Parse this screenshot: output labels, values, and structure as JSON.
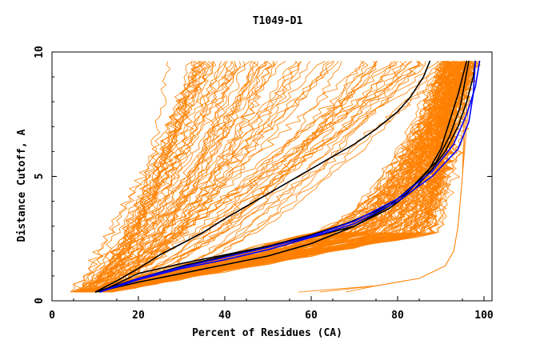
{
  "chart_data": {
    "type": "line",
    "title": "T1049-D1",
    "xlabel": "Percent of Residues (CA)",
    "ylabel": "Distance Cutoff, A",
    "xlim": [
      0,
      100
    ],
    "ylim": [
      0,
      10
    ],
    "x_ticks": [
      0,
      20,
      40,
      60,
      80,
      100
    ],
    "y_ticks": [
      0,
      5,
      10
    ],
    "grid": false,
    "legend": "none",
    "colors": {
      "models": "#ff8000",
      "highlight": "#000000",
      "reference": "#0000ff",
      "axes": "#000000"
    },
    "series": [
      {
        "role": "highlight",
        "x": [
          10,
          15,
          20,
          25,
          30,
          35,
          40,
          45,
          50,
          55,
          60,
          65,
          70,
          75,
          80,
          83,
          86,
          87.5
        ],
        "y": [
          0.35,
          0.8,
          1.3,
          1.85,
          2.3,
          2.75,
          3.3,
          3.8,
          4.3,
          4.8,
          5.3,
          5.8,
          6.3,
          6.9,
          7.6,
          8.2,
          9.0,
          9.65
        ]
      },
      {
        "role": "highlight",
        "x": [
          10,
          20,
          30,
          40,
          50,
          60,
          68,
          75,
          82,
          87,
          90,
          92,
          94,
          96
        ],
        "y": [
          0.35,
          0.9,
          1.4,
          1.8,
          2.2,
          2.65,
          3.1,
          3.6,
          4.3,
          5.2,
          6.1,
          7.2,
          8.3,
          9.65
        ]
      },
      {
        "role": "highlight",
        "x": [
          10,
          20,
          30,
          40,
          50,
          60,
          70,
          78,
          84,
          89,
          92,
          94.5,
          96.5
        ],
        "y": [
          0.35,
          0.75,
          1.1,
          1.45,
          1.8,
          2.3,
          3.0,
          3.8,
          4.7,
          5.6,
          6.6,
          7.8,
          9.65
        ]
      },
      {
        "role": "highlight",
        "x": [
          11,
          20,
          30,
          40,
          50,
          60,
          70,
          78,
          84,
          88,
          91,
          94,
          96,
          97.5,
          98
        ],
        "y": [
          0.35,
          1.1,
          1.5,
          1.85,
          2.2,
          2.55,
          3.0,
          3.7,
          4.5,
          5.3,
          6.0,
          7.0,
          8.0,
          9.0,
          9.65
        ]
      },
      {
        "role": "reference",
        "x": [
          11,
          20,
          30,
          40,
          50,
          60,
          70,
          80,
          88,
          94,
          96.5,
          97.5,
          98
        ],
        "y": [
          0.35,
          0.85,
          1.3,
          1.65,
          2.05,
          2.55,
          3.1,
          4.0,
          5.0,
          6.1,
          7.2,
          8.3,
          9.65
        ]
      },
      {
        "role": "reference",
        "x": [
          11,
          20,
          30,
          40,
          50,
          60,
          70,
          80,
          88,
          93,
          96,
          98,
          99
        ],
        "y": [
          0.35,
          0.9,
          1.35,
          1.75,
          2.15,
          2.6,
          3.2,
          4.1,
          5.2,
          6.3,
          7.5,
          8.6,
          9.65
        ]
      }
    ]
  }
}
